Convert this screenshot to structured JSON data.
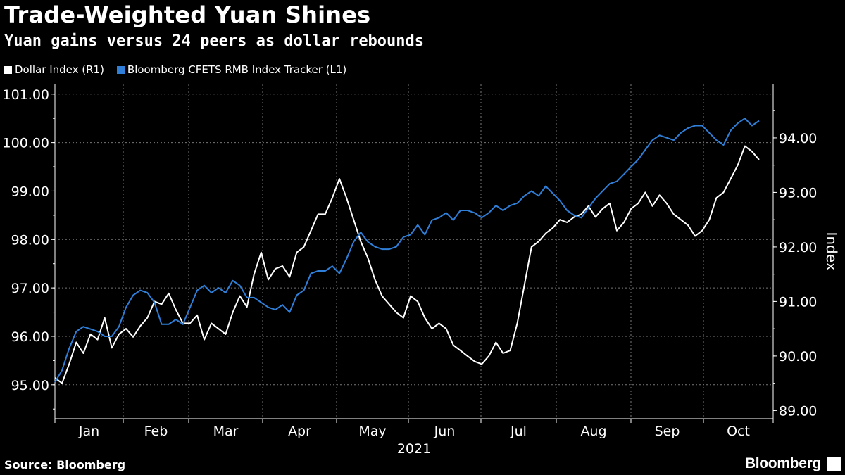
{
  "colors": {
    "background": "#000000",
    "dollar": "#ffffff",
    "cfets": "#2f7fd9",
    "grid": "#777777"
  },
  "chart_data": {
    "type": "line",
    "title": "Trade-Weighted Yuan Shines",
    "subtitle": "Yuan gains versus 24 peers as dollar rebounds",
    "legend": [
      "Dollar Index (R1)",
      "Bloomberg CFETS RMB Index Tracker (L1)"
    ],
    "legend_placement": "top-left",
    "grid": true,
    "x_ticks": [
      "Jan",
      "Feb",
      "Mar",
      "Apr",
      "May",
      "Jun",
      "Jul",
      "Aug",
      "Sep",
      "Oct"
    ],
    "x_year_label": "2021",
    "left_axis": {
      "ticks": [
        "95.00",
        "96.00",
        "97.00",
        "98.00",
        "99.00",
        "100.00",
        "101.00"
      ],
      "ylim": [
        94.3,
        101.2
      ]
    },
    "right_axis": {
      "label": "Index",
      "ticks": [
        "89.00",
        "90.00",
        "91.00",
        "92.00",
        "93.00",
        "94.00"
      ],
      "ylim": [
        88.85,
        94.98
      ]
    },
    "series": [
      {
        "name": "Dollar Index (R1)",
        "axis": "right",
        "x": [
          1,
          2,
          3,
          4,
          5,
          6,
          7,
          8,
          9,
          10,
          11,
          12,
          13,
          14,
          15,
          16,
          17,
          18,
          19,
          20,
          21,
          22,
          23,
          24,
          25,
          26,
          27,
          28,
          29,
          30,
          31,
          32,
          33,
          34,
          35,
          36,
          37,
          38,
          39,
          40,
          41,
          42,
          43,
          44,
          45,
          46,
          47,
          48,
          49,
          50,
          51,
          52,
          53,
          54,
          55,
          56,
          57,
          58,
          59,
          60,
          61,
          62,
          63,
          64,
          65,
          66,
          67,
          68,
          69,
          70,
          71,
          72,
          73,
          74,
          75,
          76,
          77,
          78,
          79,
          80,
          81,
          82,
          83,
          84,
          85,
          86,
          87,
          88,
          89,
          90,
          91,
          92,
          93,
          94,
          95,
          96,
          97,
          98,
          99,
          100
        ],
        "values": [
          89.6,
          89.5,
          89.85,
          90.25,
          90.05,
          90.4,
          90.3,
          90.7,
          90.15,
          90.4,
          90.5,
          90.35,
          90.55,
          90.7,
          91.0,
          90.95,
          91.15,
          90.85,
          90.6,
          90.6,
          90.75,
          90.3,
          90.6,
          90.5,
          90.4,
          90.8,
          91.1,
          90.9,
          91.5,
          91.9,
          91.4,
          91.6,
          91.65,
          91.45,
          91.9,
          92.0,
          92.3,
          92.6,
          92.6,
          92.9,
          93.25,
          92.9,
          92.5,
          92.1,
          91.8,
          91.4,
          91.1,
          90.95,
          90.8,
          90.7,
          91.1,
          91.0,
          90.7,
          90.5,
          90.6,
          90.5,
          90.2,
          90.1,
          90.0,
          89.9,
          89.85,
          90.0,
          90.25,
          90.05,
          90.1,
          90.6,
          91.3,
          92.0,
          92.1,
          92.25,
          92.35,
          92.5,
          92.45,
          92.55,
          92.6,
          92.75,
          92.55,
          92.7,
          92.8,
          92.3,
          92.45,
          92.7,
          92.8,
          93.0,
          92.75,
          92.95,
          92.8,
          92.6,
          92.5,
          92.4,
          92.2,
          92.3,
          92.5,
          92.9,
          93.0,
          93.25,
          93.5,
          93.85,
          93.75,
          93.6
        ],
        "note": "approximate, read from right axis against chart date positions"
      },
      {
        "name": "Bloomberg CFETS RMB Index Tracker (L1)",
        "axis": "left",
        "x": [
          1,
          2,
          3,
          4,
          5,
          6,
          7,
          8,
          9,
          10,
          11,
          12,
          13,
          14,
          15,
          16,
          17,
          18,
          19,
          20,
          21,
          22,
          23,
          24,
          25,
          26,
          27,
          28,
          29,
          30,
          31,
          32,
          33,
          34,
          35,
          36,
          37,
          38,
          39,
          40,
          41,
          42,
          43,
          44,
          45,
          46,
          47,
          48,
          49,
          50,
          51,
          52,
          53,
          54,
          55,
          56,
          57,
          58,
          59,
          60,
          61,
          62,
          63,
          64,
          65,
          66,
          67,
          68,
          69,
          70,
          71,
          72,
          73,
          74,
          75,
          76,
          77,
          78,
          79,
          80,
          81,
          82,
          83,
          84,
          85,
          86,
          87,
          88,
          89,
          90,
          91,
          92,
          93,
          94,
          95,
          96,
          97,
          98,
          99,
          100
        ],
        "values": [
          95.05,
          95.3,
          95.75,
          96.1,
          96.2,
          96.15,
          96.1,
          96.0,
          96.0,
          96.2,
          96.6,
          96.85,
          96.95,
          96.9,
          96.7,
          96.25,
          96.25,
          96.35,
          96.25,
          96.6,
          96.95,
          97.05,
          96.9,
          97.0,
          96.9,
          97.15,
          97.05,
          96.8,
          96.8,
          96.7,
          96.6,
          96.55,
          96.65,
          96.5,
          96.85,
          96.95,
          97.3,
          97.35,
          97.35,
          97.45,
          97.3,
          97.6,
          97.95,
          98.15,
          97.95,
          97.85,
          97.8,
          97.8,
          97.85,
          98.05,
          98.1,
          98.3,
          98.1,
          98.4,
          98.45,
          98.55,
          98.4,
          98.6,
          98.6,
          98.55,
          98.45,
          98.55,
          98.7,
          98.6,
          98.7,
          98.75,
          98.9,
          99.0,
          98.9,
          99.1,
          98.95,
          98.8,
          98.6,
          98.5,
          98.45,
          98.65,
          98.85,
          99.0,
          99.15,
          99.2,
          99.35,
          99.5,
          99.65,
          99.85,
          100.05,
          100.15,
          100.1,
          100.05,
          100.2,
          100.3,
          100.35,
          100.35,
          100.2,
          100.05,
          99.95,
          100.25,
          100.4,
          100.5,
          100.35,
          100.45
        ],
        "note": "approximate, read from left axis against chart date positions"
      }
    ]
  },
  "source_label": "Source: Bloomberg",
  "brand_label": "Bloomberg"
}
